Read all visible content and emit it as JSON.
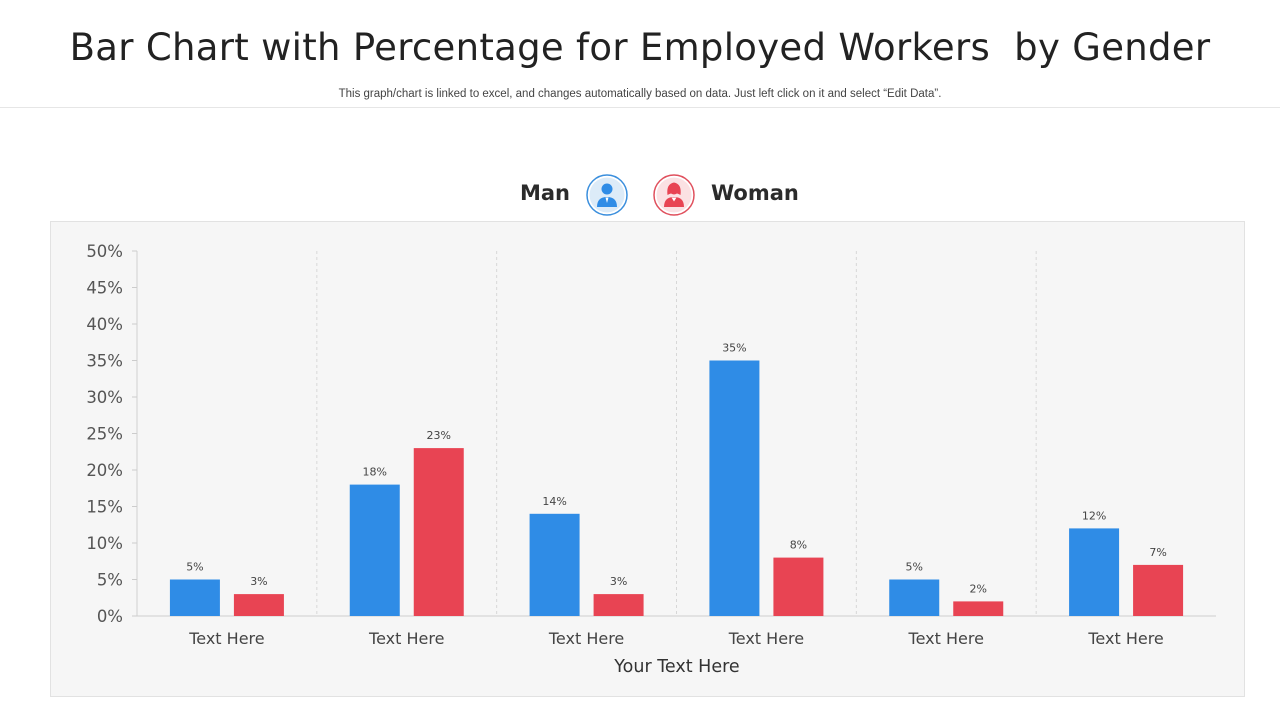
{
  "header": {
    "title": "Bar Chart with Percentage for Employed Workers  by Gender",
    "subtitle": "This graph/chart is linked to excel,  and changes automatically based on data. Just left click on it and select “Edit Data”."
  },
  "legend": {
    "man_label": "Man",
    "woman_label": "Woman",
    "man_icon": "man-avatar-icon",
    "woman_icon": "woman-avatar-icon"
  },
  "colors": {
    "man": "#2f8ce6",
    "woman": "#e84453",
    "man_ring": "#3b8fdd",
    "woman_ring": "#e0505d"
  },
  "chart_data": {
    "type": "bar",
    "title": "Bar Chart with Percentage for Employed Workers  by Gender",
    "xlabel": "Your Text Here",
    "ylabel": "",
    "ylim": [
      0,
      50
    ],
    "yticks": [
      0,
      5,
      10,
      15,
      20,
      25,
      30,
      35,
      40,
      45,
      50
    ],
    "ytick_labels": [
      "0%",
      "5%",
      "10%",
      "15%",
      "20%",
      "25%",
      "30%",
      "35%",
      "40%",
      "45%",
      "50%"
    ],
    "categories": [
      "Text Here",
      "Text Here",
      "Text Here",
      "Text Here",
      "Text Here",
      "Text Here"
    ],
    "series": [
      {
        "name": "Man",
        "values": [
          5,
          18,
          14,
          35,
          5,
          12
        ],
        "labels": [
          "5%",
          "18%",
          "14%",
          "35%",
          "5%",
          "12%"
        ]
      },
      {
        "name": "Woman",
        "values": [
          3,
          23,
          3,
          8,
          2,
          7
        ],
        "labels": [
          "3%",
          "23%",
          "3%",
          "8%",
          "2%",
          "7%"
        ]
      }
    ],
    "grid": false,
    "legend_position": "top-center"
  }
}
